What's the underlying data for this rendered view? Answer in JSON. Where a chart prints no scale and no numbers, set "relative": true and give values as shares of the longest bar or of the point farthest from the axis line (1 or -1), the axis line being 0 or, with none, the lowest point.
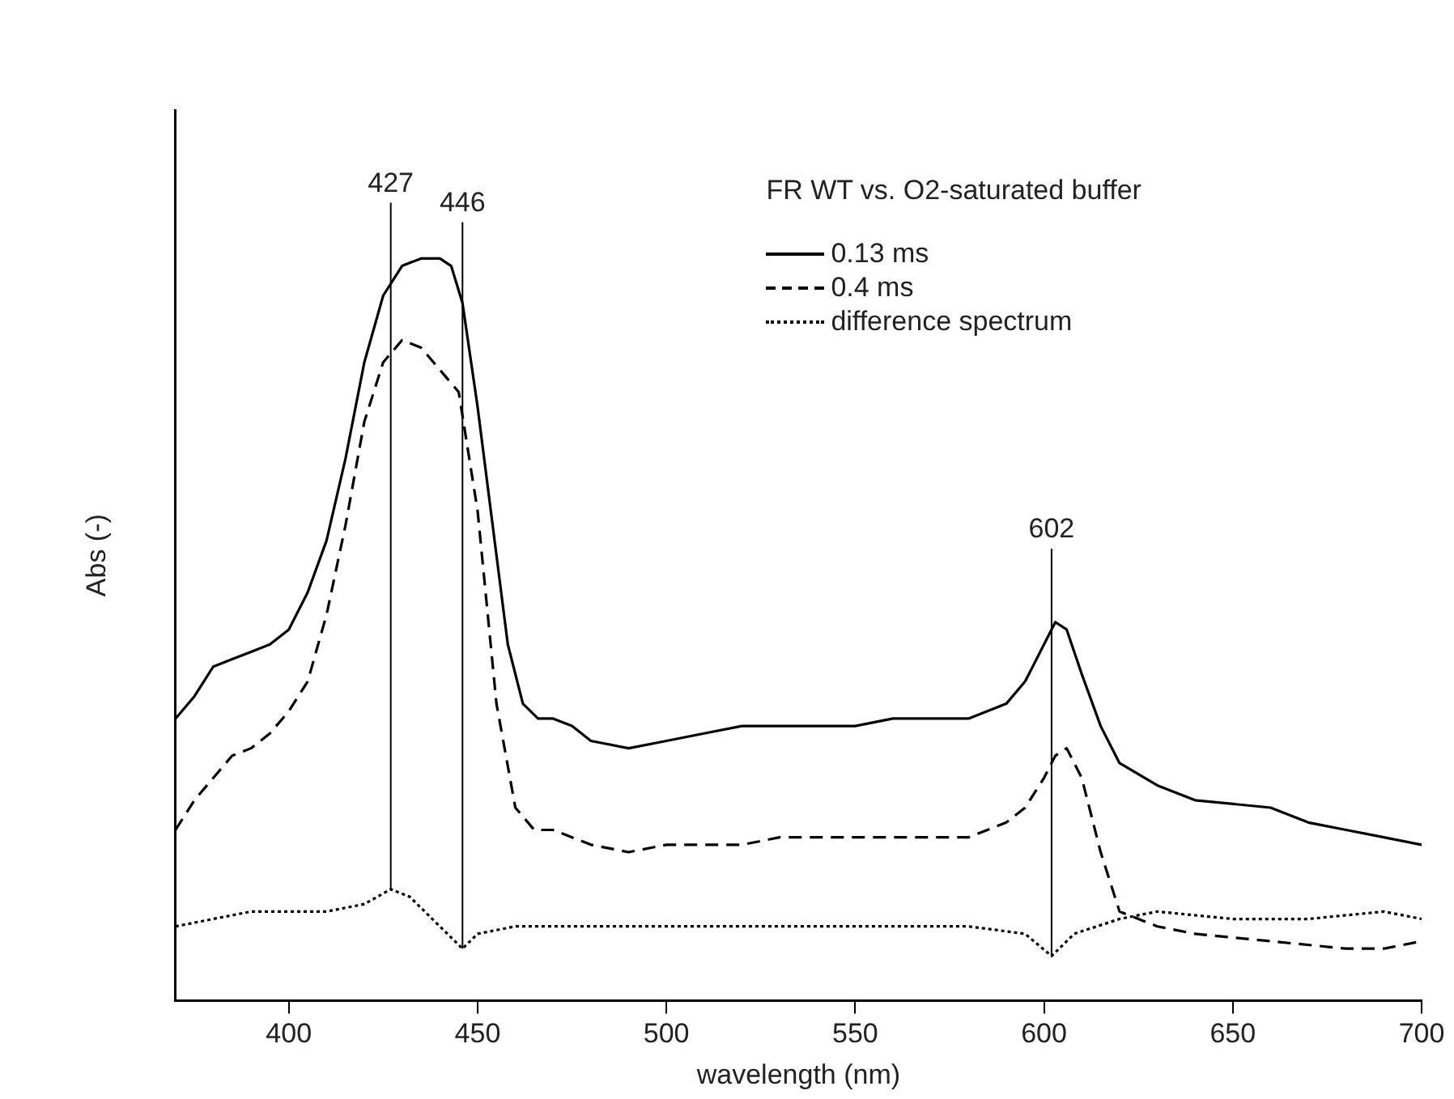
{
  "chart_data": {
    "type": "line",
    "relative": true,
    "xlabel": "wavelength (nm)",
    "ylabel": "Abs (-)",
    "legend_title": "FR WT vs. O2-saturated buffer",
    "legend": "top right",
    "grid": false,
    "marker": "none",
    "xlim": [
      370,
      700
    ],
    "xticks": [
      400,
      450,
      500,
      550,
      600,
      650,
      700
    ],
    "ref_lines": [
      {
        "axis": "x",
        "value": 427,
        "label": "427",
        "color": "#000000"
      },
      {
        "axis": "x",
        "value": 446,
        "label": "446",
        "color": "#000000"
      },
      {
        "axis": "x",
        "value": 602,
        "label": "602",
        "color": "#000000"
      }
    ],
    "series": [
      {
        "name": "0.13 ms",
        "color": "#000000",
        "line_style": "solid",
        "x": [
          370,
          375,
          380,
          385,
          390,
          395,
          400,
          405,
          410,
          415,
          420,
          425,
          430,
          435,
          440,
          443,
          446,
          450,
          455,
          458,
          462,
          466,
          470,
          475,
          480,
          490,
          500,
          510,
          520,
          530,
          540,
          550,
          560,
          570,
          580,
          590,
          595,
          600,
          603,
          606,
          610,
          615,
          620,
          630,
          640,
          660,
          670,
          680,
          690,
          700
        ],
        "values": [
          0.38,
          0.41,
          0.45,
          0.46,
          0.47,
          0.48,
          0.5,
          0.55,
          0.62,
          0.73,
          0.86,
          0.95,
          0.99,
          1.0,
          1.0,
          0.99,
          0.94,
          0.8,
          0.6,
          0.48,
          0.4,
          0.38,
          0.38,
          0.37,
          0.35,
          0.34,
          0.35,
          0.36,
          0.37,
          0.37,
          0.37,
          0.37,
          0.38,
          0.38,
          0.38,
          0.4,
          0.43,
          0.48,
          0.51,
          0.5,
          0.44,
          0.37,
          0.32,
          0.29,
          0.27,
          0.26,
          0.24,
          0.23,
          0.22,
          0.21
        ]
      },
      {
        "name": "0.4 ms",
        "color": "#000000",
        "line_style": "dashed",
        "x": [
          370,
          375,
          380,
          385,
          390,
          395,
          400,
          405,
          410,
          415,
          420,
          425,
          430,
          435,
          440,
          445,
          450,
          455,
          460,
          465,
          470,
          475,
          480,
          490,
          500,
          510,
          520,
          530,
          540,
          550,
          560,
          570,
          580,
          590,
          595,
          600,
          603,
          606,
          610,
          615,
          620,
          630,
          640,
          660,
          680,
          690,
          700
        ],
        "values": [
          0.23,
          0.27,
          0.3,
          0.33,
          0.34,
          0.36,
          0.39,
          0.43,
          0.52,
          0.64,
          0.78,
          0.86,
          0.89,
          0.88,
          0.85,
          0.82,
          0.66,
          0.4,
          0.26,
          0.23,
          0.23,
          0.22,
          0.21,
          0.2,
          0.21,
          0.21,
          0.21,
          0.22,
          0.22,
          0.22,
          0.22,
          0.22,
          0.22,
          0.24,
          0.26,
          0.3,
          0.33,
          0.34,
          0.3,
          0.2,
          0.12,
          0.1,
          0.09,
          0.08,
          0.07,
          0.07,
          0.08
        ]
      },
      {
        "name": "difference spectrum",
        "color": "#000000",
        "line_style": "dotted",
        "x": [
          370,
          380,
          390,
          400,
          410,
          420,
          427,
          432,
          440,
          446,
          450,
          460,
          480,
          500,
          520,
          540,
          560,
          580,
          595,
          602,
          608,
          620,
          630,
          650,
          670,
          690,
          700
        ],
        "values": [
          0.1,
          0.11,
          0.12,
          0.12,
          0.12,
          0.13,
          0.15,
          0.14,
          0.1,
          0.07,
          0.09,
          0.1,
          0.1,
          0.1,
          0.1,
          0.1,
          0.1,
          0.1,
          0.09,
          0.06,
          0.09,
          0.11,
          0.12,
          0.11,
          0.11,
          0.12,
          0.11
        ]
      }
    ]
  }
}
